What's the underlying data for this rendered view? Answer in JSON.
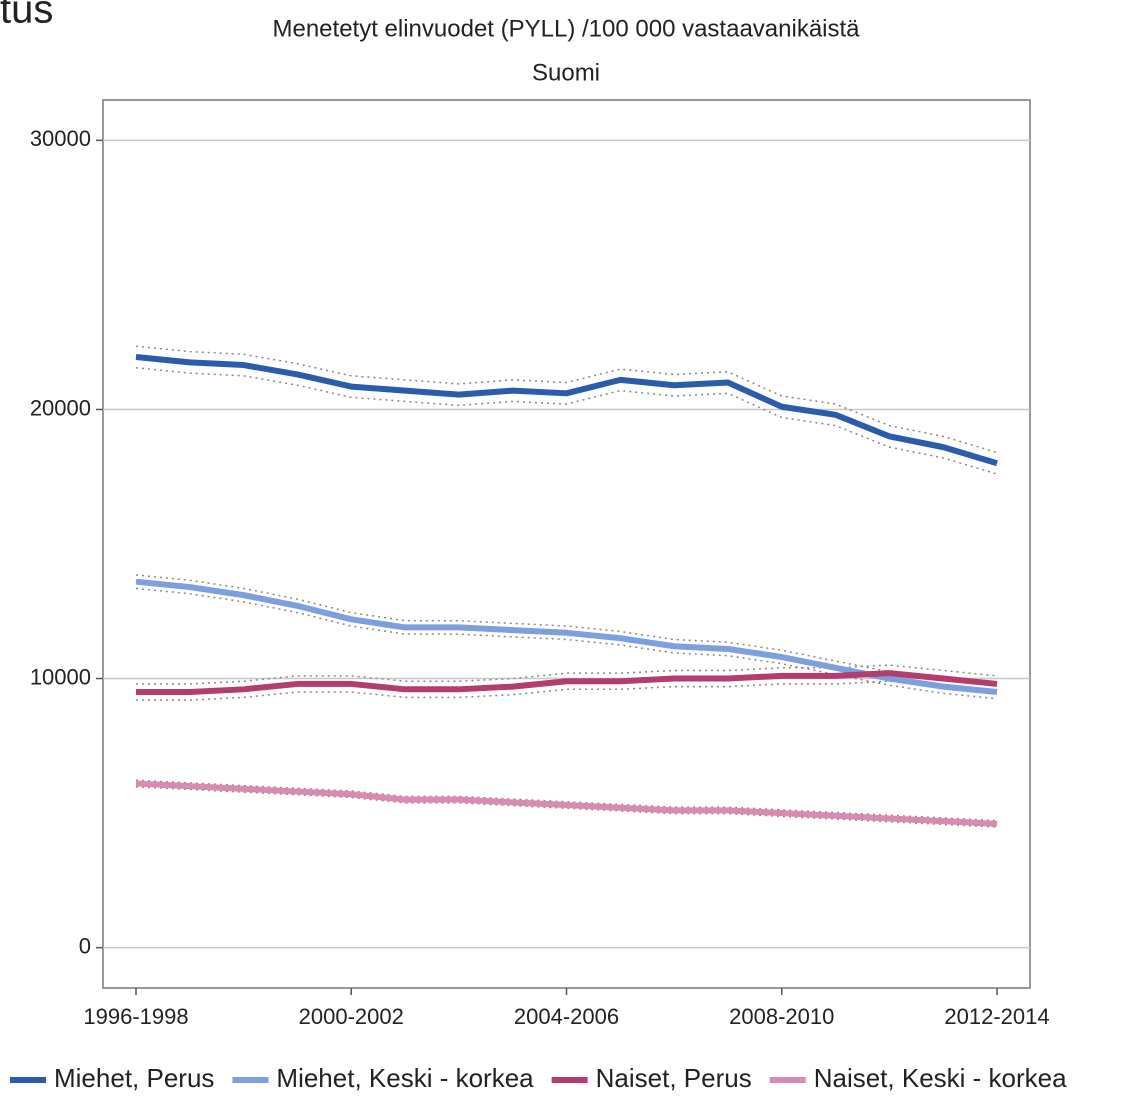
{
  "page_text": "tus",
  "chart_data": {
    "type": "line",
    "title": "Menetetyt elinvuodet (PYLL) /100 000 vastaavanikäistä",
    "subtitle": "Suomi",
    "categories": [
      "1996-1998",
      null,
      null,
      null,
      "2000-2002",
      null,
      null,
      null,
      "2004-2006",
      null,
      null,
      null,
      "2008-2010",
      null,
      null,
      null,
      "2012-2014"
    ],
    "ylim": [
      -1500,
      31500
    ],
    "yticks": [
      0,
      10000,
      20000,
      30000
    ],
    "grid": true,
    "legend": "bottom",
    "series": [
      {
        "name": "Miehet, Perus",
        "color": "#2a5caa",
        "values": [
          21950,
          21750,
          21650,
          21300,
          20850,
          20700,
          20550,
          20700,
          20600,
          21100,
          20900,
          21000,
          20100,
          19800,
          19000,
          18600,
          18000
        ],
        "lower": [
          21550,
          21350,
          21250,
          20900,
          20450,
          20300,
          20150,
          20300,
          20200,
          20700,
          20500,
          20600,
          19700,
          19400,
          18600,
          18200,
          17600
        ],
        "upper": [
          22350,
          22150,
          22050,
          21700,
          21250,
          21100,
          20950,
          21100,
          21000,
          21500,
          21300,
          21400,
          20500,
          20200,
          19400,
          19000,
          18400
        ]
      },
      {
        "name": "Miehet, Keski - korkea",
        "color": "#7b9fdf",
        "values": [
          13600,
          13400,
          13100,
          12700,
          12200,
          11900,
          11900,
          11800,
          11700,
          11500,
          11200,
          11100,
          10800,
          10400,
          10000,
          9700,
          9500
        ],
        "lower": [
          13350,
          13150,
          12850,
          12450,
          11950,
          11650,
          11650,
          11550,
          11450,
          11250,
          10950,
          10850,
          10550,
          10150,
          9750,
          9450,
          9250
        ],
        "upper": [
          13850,
          13650,
          13350,
          12950,
          12450,
          12150,
          12150,
          12050,
          11950,
          11750,
          11450,
          11350,
          11050,
          10650,
          10250,
          9950,
          9750
        ]
      },
      {
        "name": "Naiset, Perus",
        "color": "#b33d6e",
        "values": [
          9500,
          9500,
          9600,
          9800,
          9800,
          9600,
          9600,
          9700,
          9900,
          9900,
          10000,
          10000,
          10100,
          10100,
          10200,
          10000,
          9800
        ],
        "lower": [
          9200,
          9200,
          9300,
          9500,
          9500,
          9300,
          9300,
          9400,
          9600,
          9600,
          9700,
          9700,
          9800,
          9800,
          9900,
          9700,
          9500
        ],
        "upper": [
          9800,
          9800,
          9900,
          10100,
          10100,
          9900,
          9900,
          10000,
          10200,
          10200,
          10300,
          10300,
          10400,
          10400,
          10500,
          10300,
          10100
        ]
      },
      {
        "name": "Naiset, Keski - korkea",
        "color": "#d98ab2",
        "values": [
          6100,
          6000,
          5900,
          5800,
          5700,
          5500,
          5500,
          5400,
          5300,
          5200,
          5100,
          5100,
          5000,
          4900,
          4800,
          4700,
          4600
        ],
        "lower": [
          5980,
          5880,
          5780,
          5680,
          5580,
          5380,
          5380,
          5280,
          5180,
          5080,
          4980,
          4980,
          4880,
          4780,
          4680,
          4580,
          4480
        ],
        "upper": [
          6220,
          6120,
          6020,
          5920,
          5820,
          5620,
          5620,
          5520,
          5420,
          5320,
          5220,
          5220,
          5120,
          5020,
          4920,
          4820,
          4720
        ]
      }
    ]
  }
}
